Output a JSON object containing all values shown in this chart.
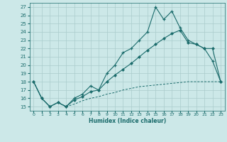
{
  "xlabel": "Humidex (Indice chaleur)",
  "bg_color": "#cce8e8",
  "grid_color": "#aacccc",
  "line_color": "#1a6b6b",
  "xlim": [
    -0.5,
    23.5
  ],
  "ylim": [
    14.5,
    27.5
  ],
  "xticks": [
    0,
    1,
    2,
    3,
    4,
    5,
    6,
    7,
    8,
    9,
    10,
    11,
    12,
    13,
    14,
    15,
    16,
    17,
    18,
    19,
    20,
    21,
    22,
    23
  ],
  "yticks": [
    15,
    16,
    17,
    18,
    19,
    20,
    21,
    22,
    23,
    24,
    25,
    26,
    27
  ],
  "line1_x": [
    0,
    1,
    2,
    3,
    4,
    5,
    6,
    7,
    8,
    9,
    10,
    11,
    12,
    13,
    14,
    15,
    16,
    17,
    18,
    19,
    20,
    21,
    22,
    23
  ],
  "line1_y": [
    18,
    16,
    15,
    15.5,
    15,
    16,
    16.5,
    17.5,
    17,
    19,
    20,
    21.5,
    22,
    23,
    24,
    27,
    25.5,
    26.5,
    24.5,
    23,
    22.5,
    22,
    20.5,
    18
  ],
  "line2_x": [
    0,
    1,
    2,
    3,
    4,
    5,
    6,
    7,
    8,
    9,
    10,
    11,
    12,
    13,
    14,
    15,
    16,
    17,
    18,
    19,
    20,
    21,
    22,
    23
  ],
  "line2_y": [
    18,
    16,
    15,
    15.5,
    15,
    15.8,
    16.2,
    16.8,
    17.0,
    18.0,
    18.8,
    19.5,
    20.2,
    21.0,
    21.8,
    22.5,
    23.2,
    23.8,
    24.2,
    22.7,
    22.5,
    22.0,
    22.0,
    18.0
  ],
  "line3_x": [
    0,
    1,
    2,
    3,
    4,
    5,
    6,
    7,
    8,
    9,
    10,
    11,
    12,
    13,
    14,
    15,
    16,
    17,
    18,
    19,
    20,
    21,
    22,
    23
  ],
  "line3_y": [
    18,
    16,
    15,
    15.5,
    15,
    15.3,
    15.7,
    16.0,
    16.2,
    16.5,
    16.7,
    17.0,
    17.2,
    17.4,
    17.5,
    17.6,
    17.7,
    17.8,
    17.9,
    18.0,
    18.0,
    18.0,
    18.0,
    18.0
  ]
}
